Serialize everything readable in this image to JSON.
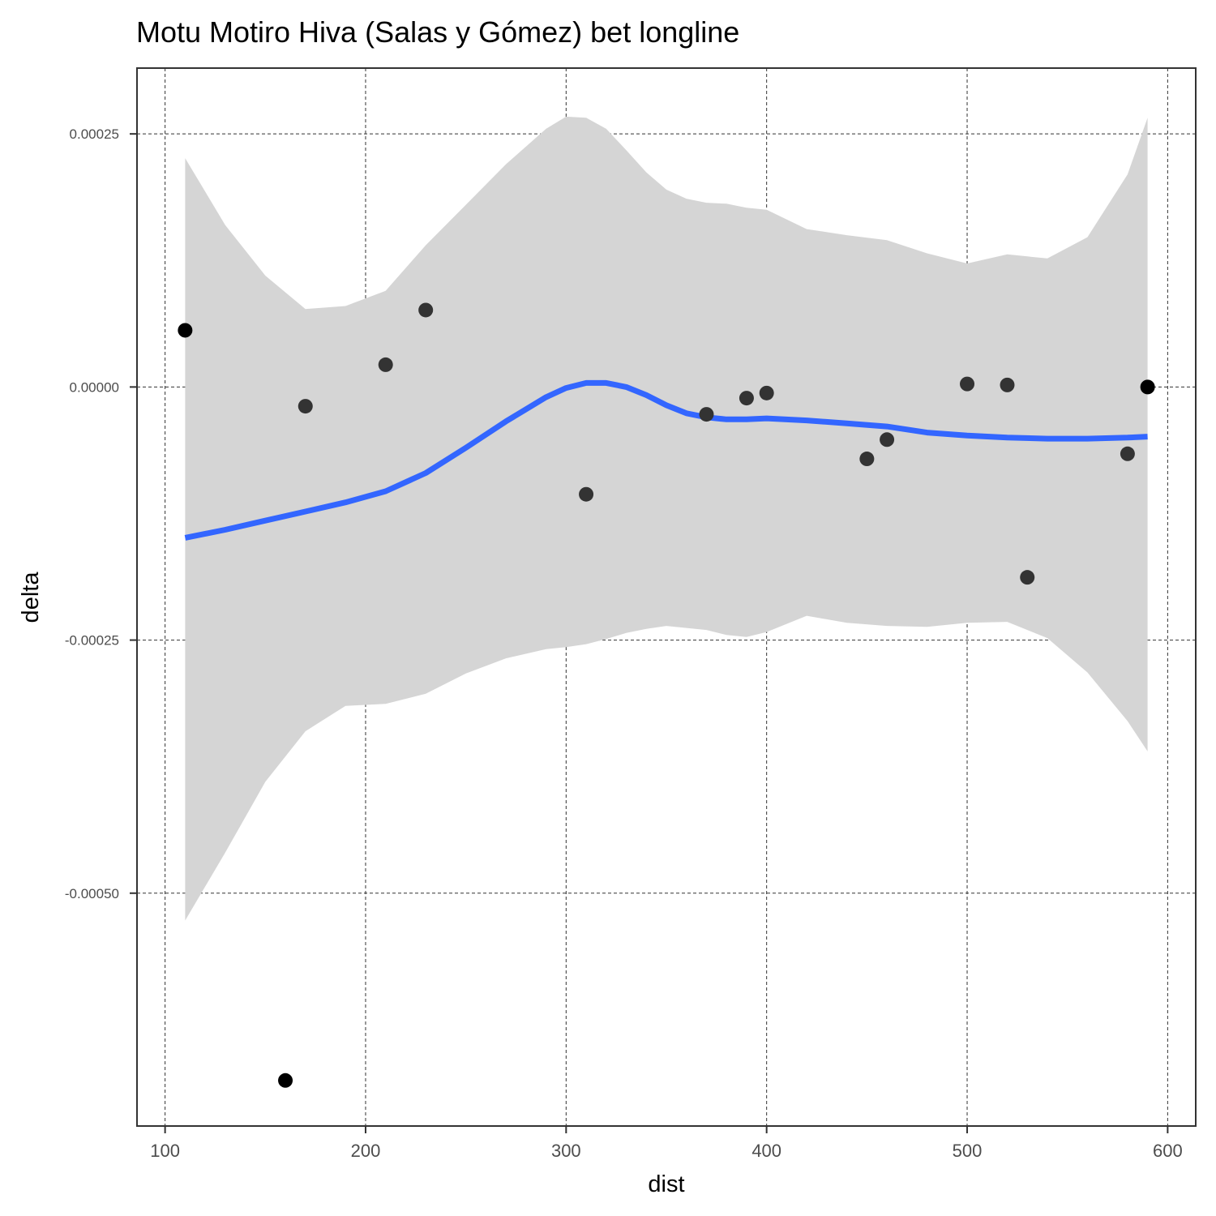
{
  "chart_data": {
    "type": "scatter",
    "title": "Motu Motiro Hiva (Salas y Gómez) bet longline",
    "xlabel": "dist",
    "ylabel": "delta",
    "xlim": [
      86,
      614
    ],
    "ylim": [
      -0.00073,
      0.000315
    ],
    "x_ticks": [
      100,
      200,
      300,
      400,
      500,
      600
    ],
    "x_tick_labels": [
      "100",
      "200",
      "300",
      "400",
      "500",
      "600"
    ],
    "y_ticks": [
      0.00025,
      0.0,
      -0.00025,
      -0.0005
    ],
    "y_tick_labels": [
      "0.00025",
      "0.00000",
      "-0.00025",
      "-0.00050"
    ],
    "grid": true,
    "points": [
      {
        "x": 110,
        "y": 5.6e-05,
        "overlap": true
      },
      {
        "x": 160,
        "y": -0.000685,
        "overlap": true
      },
      {
        "x": 170,
        "y": -1.9e-05
      },
      {
        "x": 210,
        "y": 2.2e-05
      },
      {
        "x": 230,
        "y": 7.6e-05
      },
      {
        "x": 310,
        "y": -0.000106
      },
      {
        "x": 370,
        "y": -2.7e-05
      },
      {
        "x": 390,
        "y": -1.1e-05
      },
      {
        "x": 400,
        "y": -6e-06
      },
      {
        "x": 450,
        "y": -7.1e-05
      },
      {
        "x": 460,
        "y": -5.2e-05
      },
      {
        "x": 500,
        "y": 3e-06
      },
      {
        "x": 520,
        "y": 2e-06
      },
      {
        "x": 530,
        "y": -0.000188
      },
      {
        "x": 580,
        "y": -6.6e-05
      },
      {
        "x": 590,
        "y": 0.0,
        "overlap": true
      }
    ],
    "smooth": {
      "method": "loess",
      "color": "#3366ff",
      "band_color": "#d5d5d5",
      "x": [
        110,
        130,
        150,
        170,
        190,
        210,
        230,
        250,
        270,
        290,
        300,
        310,
        320,
        330,
        340,
        350,
        360,
        370,
        380,
        390,
        400,
        420,
        440,
        460,
        480,
        500,
        520,
        540,
        560,
        580,
        590
      ],
      "y": [
        -0.000149,
        -0.000141,
        -0.000132,
        -0.000123,
        -0.000114,
        -0.000103,
        -8.5e-05,
        -6e-05,
        -3.4e-05,
        -1e-05,
        -1e-06,
        4e-06,
        4e-06,
        0.0,
        -8e-06,
        -1.8e-05,
        -2.6e-05,
        -3e-05,
        -3.2e-05,
        -3.2e-05,
        -3.1e-05,
        -3.3e-05,
        -3.6e-05,
        -3.9e-05,
        -4.5e-05,
        -4.8e-05,
        -5e-05,
        -5.1e-05,
        -5.1e-05,
        -5e-05,
        -4.9e-05
      ],
      "lower": [
        -0.000527,
        -0.00046,
        -0.00039,
        -0.00034,
        -0.000315,
        -0.000313,
        -0.000303,
        -0.000283,
        -0.000268,
        -0.000259,
        -0.000257,
        -0.000254,
        -0.000249,
        -0.000243,
        -0.000239,
        -0.000236,
        -0.000238,
        -0.00024,
        -0.000245,
        -0.000247,
        -0.000242,
        -0.000226,
        -0.000233,
        -0.000236,
        -0.000237,
        -0.000233,
        -0.000232,
        -0.000248,
        -0.000282,
        -0.00033,
        -0.00036
      ],
      "upper": [
        0.000226,
        0.00016,
        0.00011,
        7.7e-05,
        8e-05,
        9.5e-05,
        0.00014,
        0.00018,
        0.00022,
        0.000255,
        0.000267,
        0.000266,
        0.000255,
        0.000234,
        0.000212,
        0.000195,
        0.000186,
        0.000182,
        0.000181,
        0.000177,
        0.000175,
        0.000156,
        0.00015,
        0.000145,
        0.000132,
        0.000122,
        0.000131,
        0.000127,
        0.000148,
        0.00021,
        0.000266
      ]
    }
  }
}
